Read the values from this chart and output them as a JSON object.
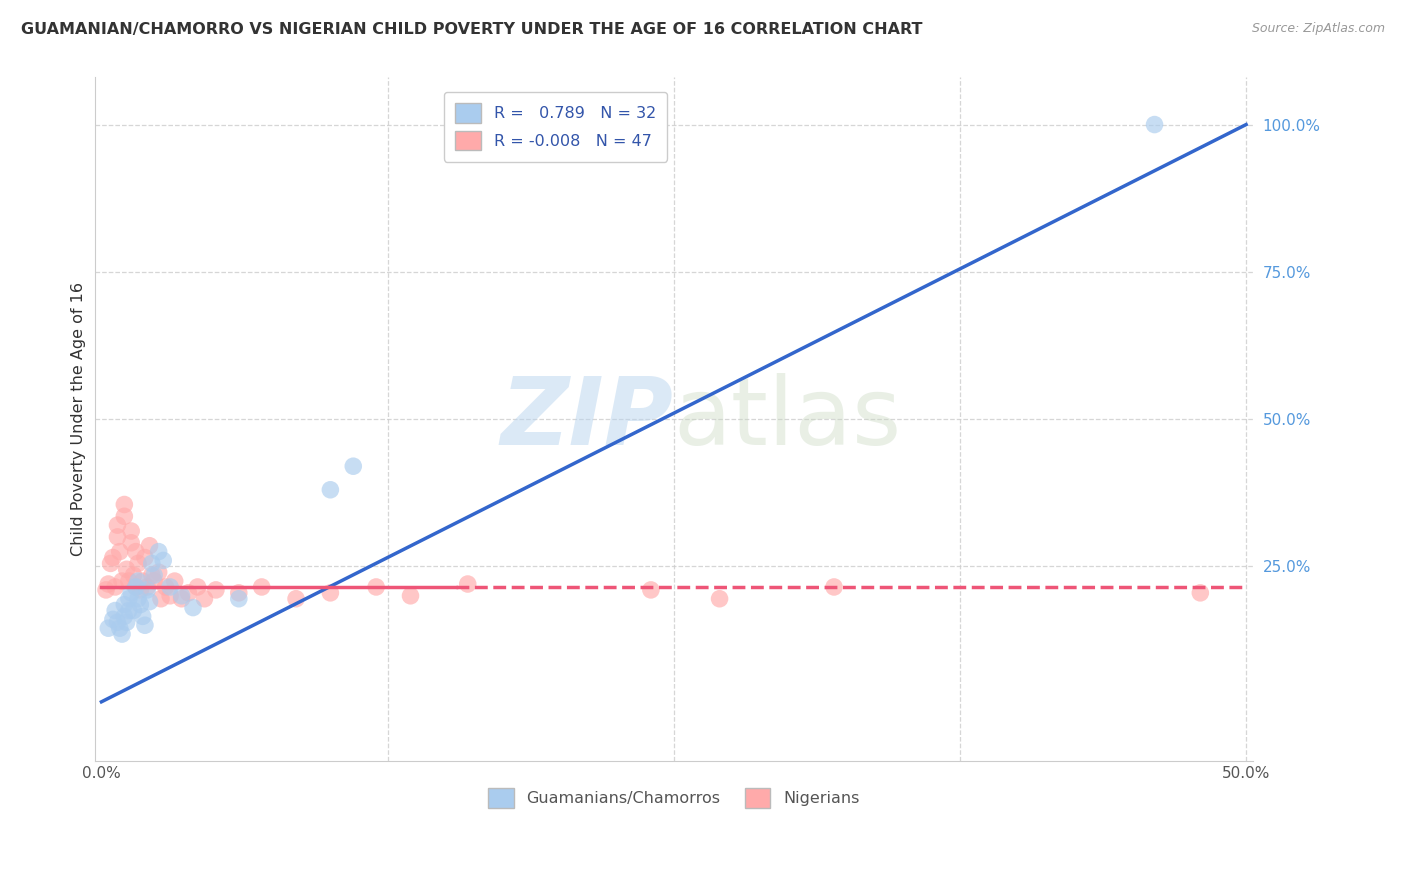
{
  "title": "GUAMANIAN/CHAMORRO VS NIGERIAN CHILD POVERTY UNDER THE AGE OF 16 CORRELATION CHART",
  "source": "Source: ZipAtlas.com",
  "ylabel": "Child Poverty Under the Age of 16",
  "xlim": [
    -0.003,
    0.503
  ],
  "ylim": [
    -0.08,
    1.08
  ],
  "blue_R": "0.789",
  "blue_N": "32",
  "pink_R": "-0.008",
  "pink_N": "47",
  "legend_label1": "Guamanians/Chamorros",
  "legend_label2": "Nigerians",
  "background_color": "#ffffff",
  "grid_color": "#cccccc",
  "blue_color": "#aaccee",
  "pink_color": "#ffaaaa",
  "blue_line_color": "#3366cc",
  "pink_line_color": "#ee5577",
  "blue_scatter_x": [
    0.003,
    0.005,
    0.006,
    0.007,
    0.008,
    0.009,
    0.01,
    0.01,
    0.011,
    0.012,
    0.012,
    0.013,
    0.014,
    0.015,
    0.016,
    0.016,
    0.017,
    0.018,
    0.019,
    0.02,
    0.021,
    0.022,
    0.023,
    0.025,
    0.027,
    0.03,
    0.035,
    0.04,
    0.06,
    0.1,
    0.11,
    0.46
  ],
  "blue_scatter_y": [
    0.145,
    0.16,
    0.175,
    0.155,
    0.145,
    0.135,
    0.185,
    0.165,
    0.155,
    0.195,
    0.175,
    0.205,
    0.175,
    0.215,
    0.225,
    0.195,
    0.185,
    0.165,
    0.15,
    0.21,
    0.19,
    0.255,
    0.235,
    0.275,
    0.26,
    0.215,
    0.2,
    0.18,
    0.195,
    0.38,
    0.42,
    1.0
  ],
  "pink_scatter_x": [
    0.002,
    0.003,
    0.004,
    0.005,
    0.006,
    0.007,
    0.007,
    0.008,
    0.009,
    0.01,
    0.01,
    0.011,
    0.012,
    0.013,
    0.013,
    0.014,
    0.015,
    0.015,
    0.016,
    0.017,
    0.018,
    0.019,
    0.02,
    0.021,
    0.022,
    0.023,
    0.025,
    0.026,
    0.028,
    0.03,
    0.032,
    0.035,
    0.038,
    0.042,
    0.045,
    0.05,
    0.06,
    0.07,
    0.085,
    0.1,
    0.12,
    0.135,
    0.16,
    0.24,
    0.27,
    0.32,
    0.48
  ],
  "pink_scatter_y": [
    0.21,
    0.22,
    0.255,
    0.265,
    0.215,
    0.3,
    0.32,
    0.275,
    0.225,
    0.335,
    0.355,
    0.245,
    0.225,
    0.29,
    0.31,
    0.235,
    0.275,
    0.215,
    0.255,
    0.21,
    0.225,
    0.265,
    0.215,
    0.285,
    0.235,
    0.225,
    0.24,
    0.195,
    0.215,
    0.2,
    0.225,
    0.195,
    0.205,
    0.215,
    0.195,
    0.21,
    0.205,
    0.215,
    0.195,
    0.205,
    0.215,
    0.2,
    0.22,
    0.21,
    0.195,
    0.215,
    0.205
  ],
  "blue_line_x0": 0.0,
  "blue_line_y0": 0.02,
  "blue_line_x1": 0.5,
  "blue_line_y1": 1.0,
  "pink_line_x0": 0.0,
  "pink_line_y0": 0.215,
  "pink_line_x1": 0.5,
  "pink_line_y1": 0.215
}
